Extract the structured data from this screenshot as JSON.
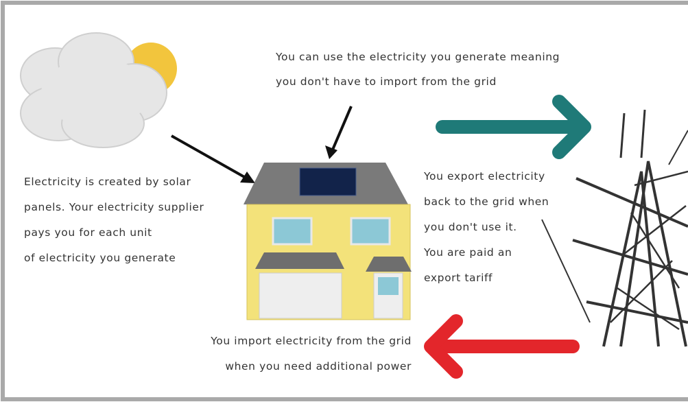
{
  "self_use_note": {
    "lines": [
      "You can use the electricity you generate meaning",
      "you don't have to import from the grid"
    ]
  },
  "generation_note": {
    "lines": [
      "Electricity is created by solar",
      "panels. Your electricity supplier",
      "pays you for each unit",
      "of electricity you generate"
    ]
  },
  "export_note": {
    "lines": [
      "You export electricity",
      "back to the grid when",
      "you don't use it.",
      "You are paid an",
      "export tariff"
    ]
  },
  "import_note": {
    "lines": [
      "You import electricity from the grid",
      "when you need additional power"
    ]
  }
}
